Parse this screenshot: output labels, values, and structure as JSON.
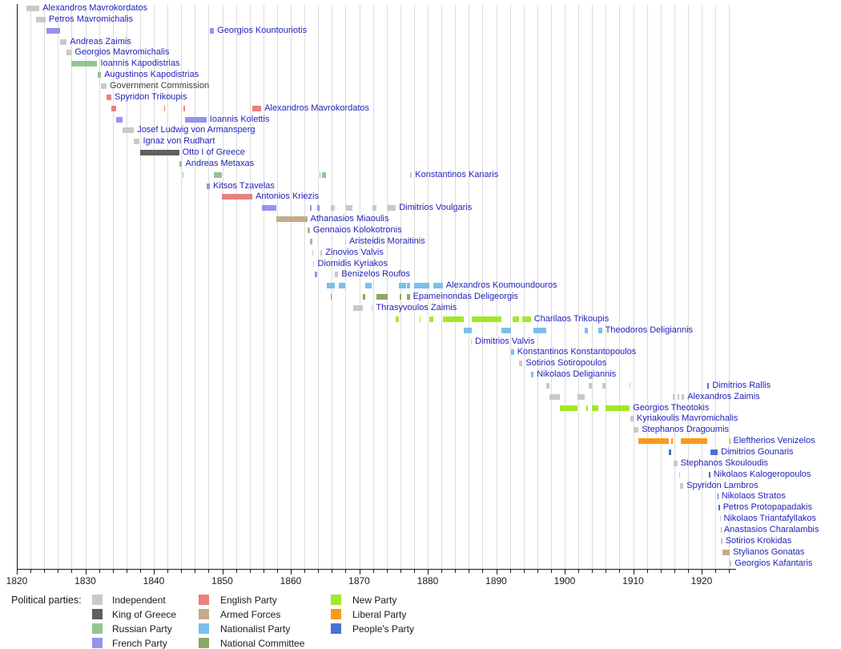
{
  "chart_data": {
    "type": "timeline",
    "title": "",
    "legend_title": "Political parties:",
    "axis": {
      "x_min": 1820,
      "x_max": 1925,
      "minor_tick_years": 2,
      "major_tick_years": 10,
      "tick_labels": [
        "1820",
        "1830",
        "1840",
        "1850",
        "1860",
        "1870",
        "1880",
        "1890",
        "1900",
        "1910",
        "1920"
      ],
      "grid": true,
      "legend_position": "bottom"
    },
    "parties": [
      {
        "id": "ind",
        "label": "Independent",
        "color": "#c9c9c9"
      },
      {
        "id": "king",
        "label": "King of Greece",
        "color": "#5f5f5f"
      },
      {
        "id": "rus",
        "label": "Russian Party",
        "color": "#93c593"
      },
      {
        "id": "fre",
        "label": "French Party",
        "color": "#9693ee"
      },
      {
        "id": "eng",
        "label": "English Party",
        "color": "#e98080"
      },
      {
        "id": "arm",
        "label": "Armed Forces",
        "color": "#c3ab8b"
      },
      {
        "id": "nat",
        "label": "Nationalist Party",
        "color": "#7ac1ea"
      },
      {
        "id": "ncom",
        "label": "National Committee",
        "color": "#8ba766"
      },
      {
        "id": "new",
        "label": "New Party",
        "color": "#a3e828"
      },
      {
        "id": "lib",
        "label": "Liberal Party",
        "color": "#f89a17"
      },
      {
        "id": "peo",
        "label": "People's Party",
        "color": "#4673d2"
      }
    ],
    "legend_columns": [
      [
        "ind",
        "king",
        "rus",
        "fre"
      ],
      [
        "eng",
        "arm",
        "nat",
        "ncom"
      ],
      [
        "new",
        "lib",
        "peo"
      ]
    ],
    "rows": [
      {
        "name": "Alexandros Mavrokordatos",
        "terms": [
          [
            1821.4,
            1823.3,
            "ind"
          ]
        ]
      },
      {
        "name": "Petros Mavromichalis",
        "terms": [
          [
            1822.8,
            1824.2,
            "ind"
          ]
        ]
      },
      {
        "name": "Georgios Kountouriotis",
        "terms": [
          [
            1824.3,
            1826.3,
            "fre"
          ],
          [
            1848.2,
            1848.8,
            "fre"
          ]
        ]
      },
      {
        "name": "Andreas Zaimis",
        "terms": [
          [
            1826.3,
            1827.3,
            "ind"
          ]
        ]
      },
      {
        "name": "Georgios Mavromichalis",
        "terms": [
          [
            1827.3,
            1828.0,
            "ind"
          ]
        ]
      },
      {
        "name": "Ioannis Kapodistrias",
        "terms": [
          [
            1828.0,
            1831.75,
            "rus"
          ]
        ]
      },
      {
        "name": "Augustinos Kapodistrias",
        "terms": [
          [
            1831.75,
            1832.3,
            "rus"
          ]
        ]
      },
      {
        "name": "Government Commission",
        "plain": true,
        "terms": [
          [
            1832.3,
            1833.1,
            "ind"
          ]
        ]
      },
      {
        "name": "Spyridon Trikoupis",
        "terms": [
          [
            1833.1,
            1833.8,
            "eng"
          ]
        ]
      },
      {
        "name": "Alexandros Mavrokordatos",
        "terms": [
          [
            1833.8,
            1834.45,
            "eng"
          ],
          [
            1841.5,
            1841.7,
            "eng"
          ],
          [
            1844.3,
            1844.6,
            "eng"
          ],
          [
            1854.4,
            1855.7,
            "eng"
          ]
        ]
      },
      {
        "name": "Ioannis Kolettis",
        "terms": [
          [
            1834.45,
            1835.4,
            "fre"
          ],
          [
            1844.6,
            1847.7,
            "fre"
          ]
        ]
      },
      {
        "name": "Josef Ludwig von Armansperg",
        "terms": [
          [
            1835.4,
            1837.1,
            "ind"
          ]
        ]
      },
      {
        "name": "Ignaz von Rudhart",
        "terms": [
          [
            1837.1,
            1837.95,
            "ind"
          ]
        ]
      },
      {
        "name": "Otto I of Greece",
        "terms": [
          [
            1837.95,
            1843.7,
            "king"
          ]
        ]
      },
      {
        "name": "Andreas Metaxas",
        "terms": [
          [
            1843.7,
            1844.15,
            "rus"
          ]
        ]
      },
      {
        "name": "Konstantinos Kanaris",
        "terms": [
          [
            1844.15,
            1844.3,
            "rus"
          ],
          [
            1848.8,
            1849.95,
            "rus"
          ],
          [
            1864.2,
            1864.35,
            "rus"
          ],
          [
            1864.6,
            1865.1,
            "rus"
          ],
          [
            1877.4,
            1877.7,
            "ind"
          ]
        ]
      },
      {
        "name": "Kitsos Tzavelas",
        "terms": [
          [
            1847.7,
            1848.2,
            "fre"
          ]
        ]
      },
      {
        "name": "Antonios Kriezis",
        "terms": [
          [
            1849.95,
            1854.4,
            "eng"
          ]
        ]
      },
      {
        "name": "Dimitrios Voulgaris",
        "terms": [
          [
            1855.75,
            1857.9,
            "fre"
          ],
          [
            1862.8,
            1863.1,
            "fre"
          ],
          [
            1863.8,
            1864.2,
            "fre"
          ],
          [
            1865.85,
            1866.4,
            "ind"
          ],
          [
            1868.05,
            1869.07,
            "ind"
          ],
          [
            1871.95,
            1872.5,
            "ind"
          ],
          [
            1874.1,
            1875.35,
            "ind"
          ]
        ]
      },
      {
        "name": "Athanasios Miaoulis",
        "terms": [
          [
            1857.9,
            1862.4,
            "arm"
          ]
        ]
      },
      {
        "name": "Gennaios Kolokotronis",
        "terms": [
          [
            1862.4,
            1862.8,
            "arm"
          ]
        ]
      },
      {
        "name": "Aristeidis Moraitinis",
        "terms": [
          [
            1862.85,
            1863.15,
            "rus"
          ],
          [
            1867.97,
            1868.07,
            "ind"
          ]
        ]
      },
      {
        "name": "Zinovios Valvis",
        "terms": [
          [
            1863.15,
            1863.3,
            "ind"
          ],
          [
            1864.35,
            1864.6,
            "ind"
          ]
        ]
      },
      {
        "name": "Diomidis Kyriakos",
        "terms": [
          [
            1863.3,
            1863.45,
            "ind"
          ]
        ]
      },
      {
        "name": "Benizelos Roufos",
        "terms": [
          [
            1863.45,
            1863.8,
            "fre"
          ],
          [
            1866.45,
            1866.95,
            "ind"
          ]
        ]
      },
      {
        "name": "Alexandros Koumoundouros",
        "terms": [
          [
            1865.2,
            1866.45,
            "nat"
          ],
          [
            1866.96,
            1867.97,
            "nat"
          ],
          [
            1870.92,
            1871.83,
            "nat"
          ],
          [
            1875.8,
            1876.88,
            "nat"
          ],
          [
            1876.95,
            1877.4,
            "nat"
          ],
          [
            1878.05,
            1880.2,
            "nat"
          ],
          [
            1880.8,
            1882.2,
            "nat"
          ]
        ]
      },
      {
        "name": "Epameinondas Deligeorgis",
        "terms": [
          [
            1865.8,
            1865.92,
            "ncom"
          ],
          [
            1870.5,
            1870.92,
            "ncom"
          ],
          [
            1872.5,
            1874.1,
            "ncom"
          ],
          [
            1875.95,
            1876.08,
            "ncom"
          ],
          [
            1876.95,
            1877.38,
            "ncom"
          ]
        ]
      },
      {
        "name": "Thrasyvoulos Zaimis",
        "terms": [
          [
            1869.07,
            1870.5,
            "ind"
          ],
          [
            1871.83,
            1871.98,
            "ind"
          ]
        ]
      },
      {
        "name": "Charilaos Trikoupis",
        "terms": [
          [
            1875.35,
            1875.8,
            "new"
          ],
          [
            1878.8,
            1878.92,
            "new"
          ],
          [
            1880.2,
            1880.8,
            "new"
          ],
          [
            1882.2,
            1885.3,
            "new"
          ],
          [
            1886.4,
            1890.8,
            "new"
          ],
          [
            1892.45,
            1893.35,
            "new"
          ],
          [
            1893.85,
            1895.05,
            "new"
          ]
        ]
      },
      {
        "name": "Theodoros Deligiannis",
        "terms": [
          [
            1885.3,
            1886.4,
            "nat"
          ],
          [
            1890.8,
            1892.2,
            "nat"
          ],
          [
            1895.45,
            1897.3,
            "nat"
          ],
          [
            1902.9,
            1903.45,
            "nat"
          ],
          [
            1904.95,
            1905.45,
            "nat"
          ]
        ]
      },
      {
        "name": "Dimitrios Valvis",
        "terms": [
          [
            1886.3,
            1886.45,
            "ind"
          ]
        ]
      },
      {
        "name": "Konstantinos Konstantopoulos",
        "terms": [
          [
            1892.2,
            1892.6,
            "nat"
          ]
        ]
      },
      {
        "name": "Sotirios Sotiropoulos",
        "terms": [
          [
            1893.35,
            1893.85,
            "ind"
          ]
        ]
      },
      {
        "name": "Nikolaos Deligiannis",
        "terms": [
          [
            1895.05,
            1895.45,
            "nat"
          ]
        ]
      },
      {
        "name": "Dimitrios Rallis",
        "terms": [
          [
            1897.3,
            1897.75,
            "ind"
          ],
          [
            1903.45,
            1903.95,
            "ind"
          ],
          [
            1905.45,
            1905.95,
            "ind"
          ],
          [
            1909.5,
            1909.63,
            "ind"
          ],
          [
            1920.85,
            1921.1,
            "peo"
          ]
        ]
      },
      {
        "name": "Alexandros Zaimis",
        "terms": [
          [
            1897.75,
            1899.3,
            "ind"
          ],
          [
            1901.85,
            1902.9,
            "ind"
          ],
          [
            1915.76,
            1916.0,
            "ind"
          ],
          [
            1916.45,
            1916.7,
            "ind"
          ],
          [
            1917.1,
            1917.45,
            "ind"
          ]
        ]
      },
      {
        "name": "Georgios Theotokis",
        "terms": [
          [
            1899.3,
            1901.85,
            "new"
          ],
          [
            1903.2,
            1903.45,
            "new"
          ],
          [
            1903.95,
            1904.95,
            "new"
          ],
          [
            1905.95,
            1909.5,
            "new"
          ]
        ]
      },
      {
        "name": "Kyriakoulis Mavromichalis",
        "terms": [
          [
            1909.63,
            1910.05,
            "ind"
          ]
        ]
      },
      {
        "name": "Stephanos Dragoumis",
        "terms": [
          [
            1910.05,
            1910.78,
            "ind"
          ]
        ]
      },
      {
        "name": "Eleftherios Venizelos",
        "terms": [
          [
            1910.78,
            1915.17,
            "lib"
          ],
          [
            1915.6,
            1915.8,
            "lib"
          ],
          [
            1917.0,
            1920.87,
            "lib"
          ],
          [
            1924.04,
            1924.15,
            "lib"
          ]
        ]
      },
      {
        "name": "Dimitrios Gounaris",
        "terms": [
          [
            1915.17,
            1915.6,
            "peo"
          ],
          [
            1921.25,
            1922.35,
            "peo"
          ]
        ]
      },
      {
        "name": "Stephanos Skouloudis",
        "terms": [
          [
            1915.85,
            1916.45,
            "ind"
          ]
        ]
      },
      {
        "name": "Nikolaos Kalogeropoulos",
        "terms": [
          [
            1916.7,
            1916.8,
            "ind"
          ],
          [
            1921.1,
            1921.25,
            "peo"
          ]
        ]
      },
      {
        "name": "Spyridon Lambros",
        "terms": [
          [
            1916.8,
            1917.34,
            "ind"
          ]
        ]
      },
      {
        "name": "Nikolaos Stratos",
        "terms": [
          [
            1922.35,
            1922.42,
            "peo"
          ]
        ]
      },
      {
        "name": "Petros Protopapadakis",
        "terms": [
          [
            1922.42,
            1922.65,
            "peo"
          ]
        ]
      },
      {
        "name": "Nikolaos Triantafyllakos",
        "terms": [
          [
            1922.65,
            1922.75,
            "ind"
          ]
        ]
      },
      {
        "name": "Anastasios Charalambis",
        "terms": [
          [
            1922.75,
            1922.8,
            "arm"
          ]
        ]
      },
      {
        "name": "Sotirios Krokidas",
        "terms": [
          [
            1922.8,
            1923.0,
            "ind"
          ]
        ]
      },
      {
        "name": "Stylianos Gonatas",
        "terms": [
          [
            1923.0,
            1924.1,
            "arm"
          ]
        ]
      },
      {
        "name": "Georgios Kafantaris",
        "terms": [
          [
            1924.1,
            1924.35,
            "ind"
          ]
        ]
      }
    ]
  }
}
